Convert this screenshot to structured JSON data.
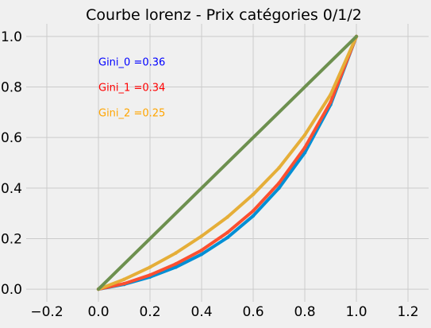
{
  "chart_data": {
    "type": "line",
    "title": "Courbe lorenz - Prix catégories 0/1/2",
    "xlabel": "",
    "ylabel": "",
    "xlim": [
      -0.28,
      1.28
    ],
    "ylim": [
      -0.05,
      1.05
    ],
    "x_ticks": [
      -0.2,
      0.0,
      0.2,
      0.4,
      0.6,
      0.8,
      1.0,
      1.2
    ],
    "x_tick_labels": [
      "−0.2",
      "0.0",
      "0.2",
      "0.4",
      "0.6",
      "0.8",
      "1.0",
      "1.2"
    ],
    "y_ticks": [
      0.0,
      0.2,
      0.4,
      0.6,
      0.8,
      1.0
    ],
    "y_tick_labels": [
      "0.0",
      "0.2",
      "0.4",
      "0.6",
      "0.8",
      "1.0"
    ],
    "grid": true,
    "style": "fivethirtyeight",
    "series": [
      {
        "color": "#008fd5",
        "x": [
          0,
          0.1,
          0.2,
          0.3,
          0.4,
          0.5,
          0.6,
          0.7,
          0.8,
          0.9,
          1.0
        ],
        "y": [
          0,
          0.019,
          0.048,
          0.087,
          0.138,
          0.204,
          0.29,
          0.4,
          0.54,
          0.73,
          1.0
        ]
      },
      {
        "color": "#fc4f30",
        "x": [
          0,
          0.1,
          0.2,
          0.3,
          0.4,
          0.5,
          0.6,
          0.7,
          0.8,
          0.9,
          1.0
        ],
        "y": [
          0,
          0.022,
          0.056,
          0.1,
          0.154,
          0.224,
          0.31,
          0.42,
          0.56,
          0.74,
          1.0
        ]
      },
      {
        "color": "#e5ae38",
        "x": [
          0,
          0.1,
          0.2,
          0.3,
          0.4,
          0.5,
          0.6,
          0.7,
          0.8,
          0.9,
          1.0
        ],
        "y": [
          0,
          0.039,
          0.087,
          0.143,
          0.21,
          0.285,
          0.375,
          0.48,
          0.61,
          0.77,
          1.0
        ]
      },
      {
        "color": "#6d904f",
        "x": [
          0,
          1.0
        ],
        "y": [
          0,
          1.0
        ]
      }
    ],
    "annotations": [
      {
        "text": "Gini_0 =0.36",
        "x": 0.0,
        "y": 0.9,
        "color": "#0000ff"
      },
      {
        "text": "Gini_1 =0.34",
        "x": 0.0,
        "y": 0.8,
        "color": "#ff0000"
      },
      {
        "text": "Gini_2 =0.25",
        "x": 0.0,
        "y": 0.7,
        "color": "#ffa500"
      }
    ]
  }
}
